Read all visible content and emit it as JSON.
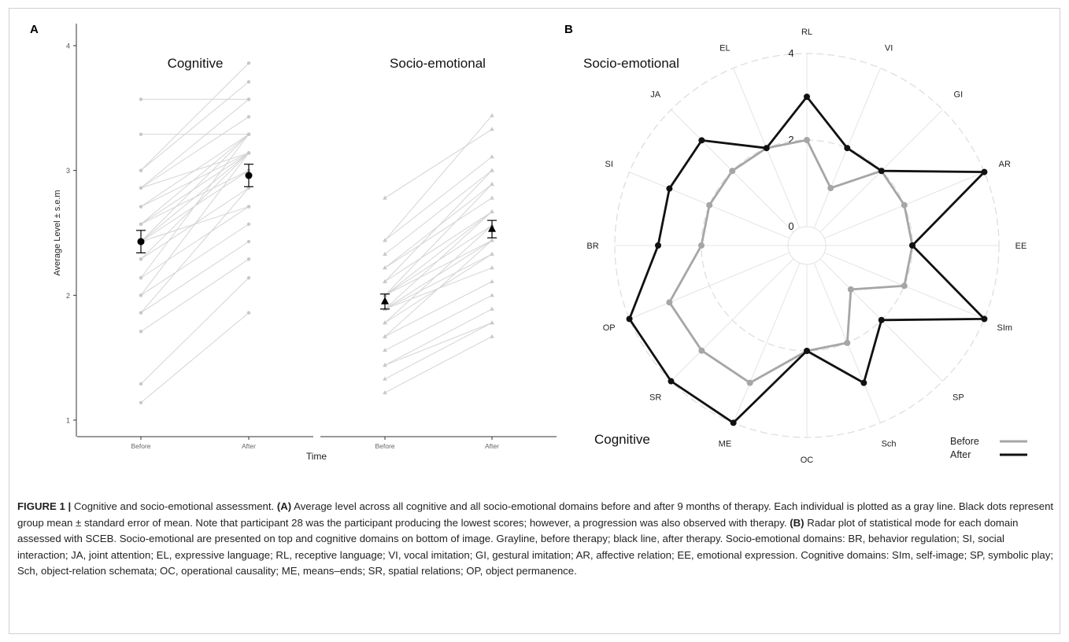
{
  "caption": {
    "label": "FIGURE 1 |",
    "text_part1": "Cognitive and socio-emotional assessment.",
    "tagA": "(A)",
    "text_part2": "Average level across all cognitive and all socio-emotional domains before and after 9 months of therapy. Each individual is plotted as a gray line. Black dots represent group mean ± standard error of mean. Note that participant 28 was the participant producing the lowest scores; however, a progression was also observed with therapy.",
    "tagB": "(B)",
    "text_part3": "Radar plot of statistical mode for each domain assessed with SCEB. Socio-emotional are presented on top and cognitive domains on bottom of image. Grayline, before therapy; black line, after therapy. Socio-emotional domains: BR, behavior regulation; SI, social interaction; JA, joint attention; EL, expressive language; RL, receptive language; VI, vocal imitation; GI, gestural imitation; AR, affective relation; EE, emotional expression. Cognitive domains: SIm, self-image; SP, symbolic play; Sch, object-relation schemata; OC, operational causality; ME, means–ends; SR, spatial relations; OP, object permanence."
  },
  "chart_data": [
    {
      "type": "line",
      "panel": "A",
      "ylabel": "Average Level ± s.e.m",
      "xlabel": "Time",
      "ylim": [
        0.9,
        4.1
      ],
      "yticks": [
        1,
        2,
        3,
        4
      ],
      "categories": [
        "Before",
        "After"
      ],
      "facets": [
        {
          "title": "Cognitive",
          "marker": "circle",
          "mean": [
            2.43,
            2.96
          ],
          "sem": [
            0.09,
            0.09
          ],
          "individual_lines": [
            [
              3.57,
              3.57
            ],
            [
              3.29,
              3.29
            ],
            [
              3.0,
              3.86
            ],
            [
              3.0,
              3.71
            ],
            [
              2.86,
              3.57
            ],
            [
              2.86,
              3.43
            ],
            [
              2.71,
              3.29
            ],
            [
              2.71,
              3.14
            ],
            [
              2.57,
              3.29
            ],
            [
              2.57,
              3.14
            ],
            [
              2.57,
              3.0
            ],
            [
              2.43,
              3.29
            ],
            [
              2.43,
              3.14
            ],
            [
              2.43,
              3.0
            ],
            [
              2.29,
              2.86
            ],
            [
              2.29,
              3.14
            ],
            [
              2.14,
              2.71
            ],
            [
              2.14,
              3.29
            ],
            [
              2.0,
              2.57
            ],
            [
              2.0,
              3.14
            ],
            [
              1.86,
              2.43
            ],
            [
              1.86,
              2.86
            ],
            [
              1.71,
              2.29
            ],
            [
              1.29,
              2.14
            ],
            [
              1.14,
              1.86
            ],
            [
              2.86,
              3.14
            ],
            [
              2.43,
              2.71
            ]
          ]
        },
        {
          "title": "Socio-emotional",
          "marker": "triangle",
          "mean": [
            1.95,
            2.53
          ],
          "sem": [
            0.06,
            0.07
          ],
          "individual_lines": [
            [
              2.78,
              3.33
            ],
            [
              2.44,
              3.44
            ],
            [
              2.44,
              3.11
            ],
            [
              2.33,
              3.0
            ],
            [
              2.22,
              2.89
            ],
            [
              2.22,
              2.78
            ],
            [
              2.11,
              3.0
            ],
            [
              2.11,
              2.67
            ],
            [
              2.0,
              2.89
            ],
            [
              2.0,
              2.56
            ],
            [
              2.0,
              2.44
            ],
            [
              1.89,
              2.67
            ],
            [
              1.89,
              2.33
            ],
            [
              1.89,
              2.22
            ],
            [
              1.78,
              2.56
            ],
            [
              1.78,
              2.33
            ],
            [
              1.67,
              2.11
            ],
            [
              1.67,
              2.44
            ],
            [
              1.56,
              2.0
            ],
            [
              1.44,
              1.89
            ],
            [
              1.44,
              1.78
            ],
            [
              1.33,
              1.78
            ],
            [
              1.22,
              1.67
            ],
            [
              2.0,
              2.67
            ],
            [
              1.89,
              2.44
            ]
          ]
        }
      ]
    },
    {
      "type": "radar",
      "panel": "B",
      "rlim": [
        0,
        4
      ],
      "rticks": [
        0,
        2,
        4
      ],
      "top_label": "Socio-emotional",
      "bottom_label": "Cognitive",
      "axes": [
        "RL",
        "VI",
        "GI",
        "AR",
        "EE",
        "SIm",
        "SP",
        "Sch",
        "OC",
        "ME",
        "SR",
        "OP",
        "BR",
        "SI",
        "JA",
        "EL"
      ],
      "series": [
        {
          "name": "Before",
          "color": "#a6a6a6",
          "values": [
            2,
            1,
            2,
            2,
            2,
            2,
            1,
            2,
            2,
            3,
            3,
            3,
            2,
            2,
            2,
            2
          ]
        },
        {
          "name": "After",
          "color": "#111111",
          "values": [
            3,
            2,
            2,
            4,
            2,
            4,
            2,
            3,
            2,
            4,
            4,
            4,
            3,
            3,
            3,
            2
          ]
        }
      ],
      "legend_position": "bottom-right"
    }
  ]
}
